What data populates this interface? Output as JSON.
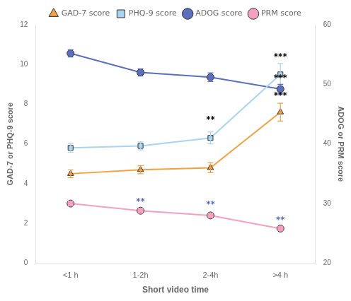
{
  "chart_data": {
    "type": "line",
    "categories": [
      "<1 h",
      "1-2h",
      "2-4h",
      ">4 h"
    ],
    "xlabel": "Short video time",
    "ylabel": "GAD-7 or PHQ-9 score",
    "y2label": "ADOG or PRM score",
    "series": [
      {
        "name": "GAD-7 score",
        "color": "#F5A040",
        "marker": "triangle",
        "values": [
          4.5,
          4.7,
          4.8,
          7.6
        ],
        "yerr": [
          0.2,
          0.2,
          0.25,
          0.45
        ]
      },
      {
        "name": "PHQ-9 score",
        "color": "#A8D4F0",
        "marker": "square",
        "values": [
          5.8,
          5.9,
          6.3,
          9.5
        ],
        "yerr": [
          0.22,
          0.2,
          0.3,
          0.55
        ]
      },
      {
        "name": "ADOG score",
        "color": "#5B6FBF",
        "marker": "circle",
        "axis": "y2",
        "values": [
          55.2,
          52.0,
          51.2,
          49.2
        ],
        "yerr": [
          0.6,
          0.6,
          0.72,
          0.8
        ]
      },
      {
        "name": "PRM score",
        "color": "#F4A0C0",
        "marker": "circle",
        "axis": "y2",
        "values": [
          30.0,
          28.8,
          28.0,
          25.8
        ],
        "yerr": [
          0.4,
          0.4,
          0.4,
          0.32
        ]
      }
    ],
    "ylim": [
      0,
      12
    ],
    "yticks": [
      0,
      2,
      4,
      6,
      8,
      10,
      12
    ],
    "y2lim": [
      20,
      60
    ],
    "y2ticks": [
      20,
      30,
      40,
      50,
      60
    ],
    "grid": false,
    "legend": "top",
    "annotations": [
      {
        "text": "**",
        "x": "1-2h",
        "y": 29.5,
        "axis": "y2",
        "color": "#5B6FBF"
      },
      {
        "text": "**",
        "x": "2-4h",
        "y": 29.1,
        "axis": "y2",
        "color": "#5B6FBF"
      },
      {
        "text": "**",
        "x": "2-4h",
        "y": 7.0,
        "axis": "y",
        "color": "#000000"
      },
      {
        "text": "***",
        "x": ">4 h",
        "y": 10.15,
        "axis": "y",
        "color": "#000000"
      },
      {
        "text": "***",
        "x": ">4 h",
        "y": 50.3,
        "axis": "y2",
        "color": "#000000"
      },
      {
        "text": "***",
        "x": ">4 h",
        "y": 47.3,
        "axis": "y2",
        "color": "#000000"
      },
      {
        "text": "**",
        "x": ">4 h",
        "y": 26.5,
        "axis": "y2",
        "color": "#5B6FBF"
      }
    ]
  }
}
